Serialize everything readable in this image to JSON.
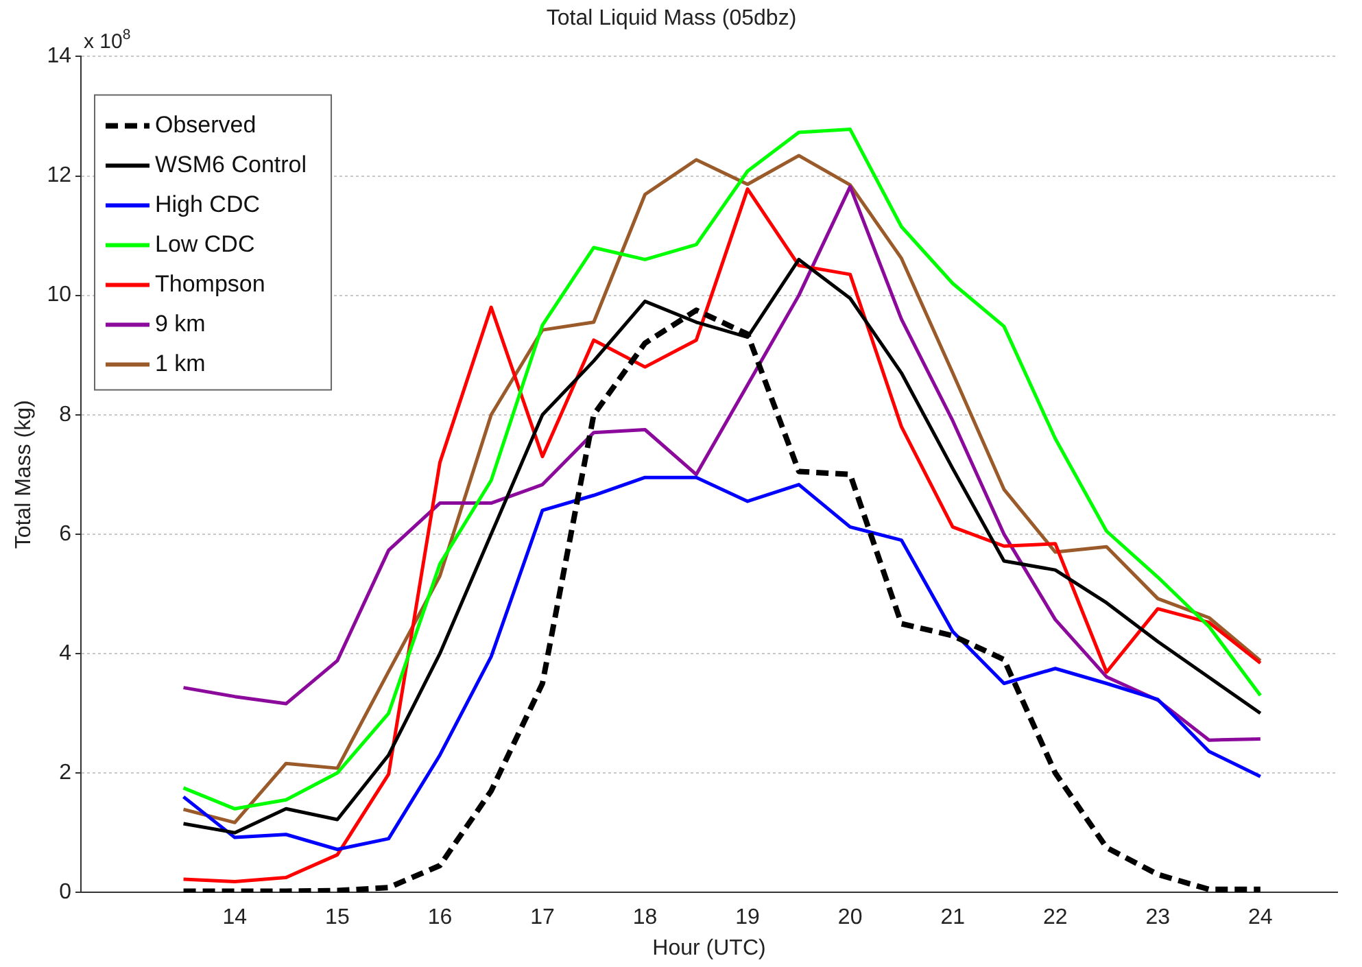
{
  "chart_data": {
    "type": "line",
    "title": "Total Liquid Mass (05dbz)",
    "xlabel": "Hour (UTC)",
    "ylabel": "Total Mass (kg)",
    "annotations": [
      "x 10$^{8}$"
    ],
    "x": [
      13.5,
      14,
      14.5,
      15,
      15.5,
      16,
      16.5,
      17,
      17.5,
      18,
      18.5,
      19,
      19.5,
      20,
      20.5,
      21,
      21.5,
      22,
      22.5,
      23,
      23.5,
      24
    ],
    "series": [
      {
        "name": "Observed",
        "color": "#000000",
        "line_style": "dashed",
        "values": [
          0.02,
          0.02,
          0.02,
          0.03,
          0.08,
          0.45,
          1.7,
          3.5,
          8.0,
          9.2,
          9.75,
          9.35,
          7.05,
          7.0,
          4.5,
          4.3,
          3.9,
          2.0,
          0.75,
          0.3,
          0.05,
          0.05
        ]
      },
      {
        "name": "WSM6 Control",
        "color": "#000000",
        "values": [
          1.15,
          1.0,
          1.4,
          1.22,
          2.3,
          4.0,
          6.0,
          8.0,
          8.9,
          9.9,
          9.55,
          9.3,
          10.6,
          9.95,
          8.7,
          7.1,
          5.55,
          5.4,
          4.85,
          4.2,
          3.6,
          3.0
        ]
      },
      {
        "name": "High CDC",
        "color": "#0000ff",
        "values": [
          1.6,
          0.92,
          0.97,
          0.72,
          0.9,
          2.3,
          3.95,
          6.4,
          6.65,
          6.95,
          6.95,
          6.55,
          6.83,
          6.12,
          5.9,
          4.37,
          3.5,
          3.75,
          3.5,
          3.23,
          2.36,
          1.94
        ]
      },
      {
        "name": "Low CDC",
        "color": "#00ff00",
        "values": [
          1.75,
          1.4,
          1.55,
          2.0,
          3.0,
          5.5,
          6.9,
          9.5,
          10.8,
          10.6,
          10.85,
          12.08,
          12.73,
          12.78,
          11.15,
          10.2,
          9.48,
          7.6,
          6.05,
          5.28,
          4.45,
          3.3
        ]
      },
      {
        "name": "Thompson",
        "color": "#ff0000",
        "values": [
          0.22,
          0.18,
          0.25,
          0.63,
          1.98,
          7.2,
          9.8,
          7.3,
          9.25,
          8.8,
          9.25,
          11.78,
          10.5,
          10.35,
          7.8,
          6.12,
          5.8,
          5.84,
          3.69,
          4.75,
          4.52,
          3.84
        ]
      },
      {
        "name": "9 km",
        "color": "#8b0a9c",
        "values": [
          3.43,
          3.28,
          3.16,
          3.88,
          5.73,
          6.52,
          6.52,
          6.83,
          7.7,
          7.75,
          7.0,
          8.5,
          10.0,
          11.82,
          9.6,
          7.9,
          6.0,
          4.57,
          3.61,
          3.22,
          2.55,
          2.57
        ]
      },
      {
        "name": "1 km",
        "color": "#9a5a2a",
        "values": [
          1.39,
          1.17,
          2.16,
          2.08,
          3.7,
          5.3,
          8.0,
          9.42,
          9.55,
          11.69,
          12.27,
          11.86,
          12.34,
          11.85,
          10.62,
          8.7,
          6.75,
          5.7,
          5.79,
          4.92,
          4.6,
          3.88
        ]
      }
    ],
    "xlim": [
      12.5,
      24.75
    ],
    "xticks": [
      14,
      15,
      16,
      17,
      18,
      19,
      20,
      21,
      22,
      23,
      24
    ],
    "ylim": [
      0,
      14
    ],
    "yticks": [
      0,
      2,
      4,
      6,
      8,
      10,
      12,
      14
    ],
    "grid": "y",
    "legend": "top left",
    "marker": "none",
    "line_style": "solid"
  }
}
